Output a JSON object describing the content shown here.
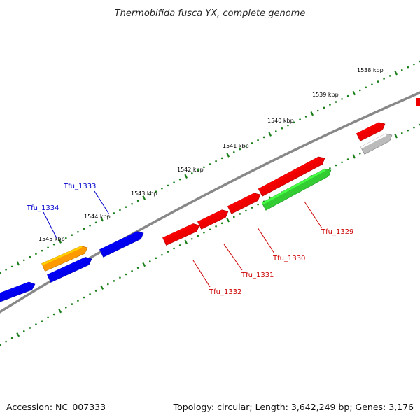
{
  "title": "Thermobifida fusca YX, complete genome",
  "footer": {
    "accession": "Accession: NC_007333",
    "summary": "Topology: circular; Length: 3,642,249 bp; Genes: 3,176"
  },
  "colors": {
    "backbone": "#7f7f7f",
    "ticks": "#1a7f1a",
    "forward_gene": "#0000ee",
    "reverse_gene": "#ee0000",
    "orange_gene": "#ff9900",
    "green_gene": "#33cc33",
    "grey_gene": "#bbbbbb",
    "label_blue": "#0000cc",
    "label_red": "#cc0000"
  },
  "ruler": {
    "ticks": [
      {
        "label": "1538 kbp"
      },
      {
        "label": "1539 kbp"
      },
      {
        "label": "1540 kbp"
      },
      {
        "label": "1541 kbp"
      },
      {
        "label": "1542 kbp"
      },
      {
        "label": "1543 kbp"
      },
      {
        "label": "1544 kbp"
      },
      {
        "label": "1545 kbp"
      }
    ]
  },
  "gene_labels": [
    {
      "name": "Tfu_1333",
      "color": "blue"
    },
    {
      "name": "Tfu_1334",
      "color": "blue"
    },
    {
      "name": "Tfu_1329",
      "color": "red"
    },
    {
      "name": "Tfu_1330",
      "color": "red"
    },
    {
      "name": "Tfu_1331",
      "color": "red"
    },
    {
      "name": "Tfu_1332",
      "color": "red"
    }
  ]
}
